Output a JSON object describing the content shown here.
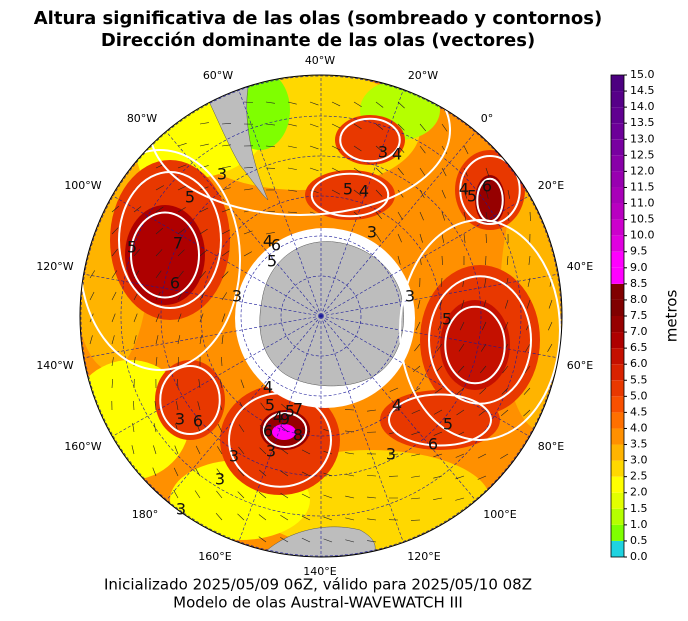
{
  "title": {
    "lines": [
      "Altura significativa de las olas (sombreado y contornos)",
      "Dirección dominante de las olas (vectores)"
    ]
  },
  "map": {
    "longitude_labels": [
      "40°W",
      "20°W",
      "0°",
      "20°E",
      "40°E",
      "60°E",
      "80°E",
      "100°E",
      "120°E",
      "140°E",
      "160°E",
      "180°",
      "160°W",
      "140°W",
      "120°W",
      "100°W",
      "80°W",
      "60°W"
    ],
    "contour_labels": [
      3,
      4,
      5,
      4,
      3,
      4,
      5,
      6,
      5,
      7,
      6,
      5,
      3,
      3,
      4,
      5,
      6,
      3,
      4,
      5,
      6,
      3,
      4,
      5,
      6,
      7,
      8,
      9,
      5,
      4,
      3,
      6,
      5,
      3,
      3,
      3,
      3
    ]
  },
  "colorbar": {
    "label": "metros",
    "ticks": [
      {
        "value": 0,
        "label": "0.0"
      },
      {
        "value": 0.5,
        "label": "0.5"
      },
      {
        "value": 1,
        "label": "1.0"
      },
      {
        "value": 1.5,
        "label": "1.5"
      },
      {
        "value": 2,
        "label": "2.0"
      },
      {
        "value": 2.5,
        "label": "2.5"
      },
      {
        "value": 3,
        "label": "3.0"
      },
      {
        "value": 3.5,
        "label": "3.5"
      },
      {
        "value": 4,
        "label": "4.0"
      },
      {
        "value": 4.5,
        "label": "4.5"
      },
      {
        "value": 5,
        "label": "5.0"
      },
      {
        "value": 5.5,
        "label": "5.5"
      },
      {
        "value": 6,
        "label": "6.0"
      },
      {
        "value": 6.5,
        "label": "6.5"
      },
      {
        "value": 7,
        "label": "7.0"
      },
      {
        "value": 7.5,
        "label": "7.5"
      },
      {
        "value": 8,
        "label": "8.0"
      },
      {
        "value": 8.5,
        "label": "8.5"
      },
      {
        "value": 9,
        "label": "9.0"
      },
      {
        "value": 9.5,
        "label": "9.5"
      },
      {
        "value": 10,
        "label": "10.0"
      },
      {
        "value": 10.5,
        "label": "10.5"
      },
      {
        "value": 11,
        "label": "11.0"
      },
      {
        "value": 11.5,
        "label": "11.5"
      },
      {
        "value": 12,
        "label": "12.0"
      },
      {
        "value": 12.5,
        "label": "12.5"
      },
      {
        "value": 13,
        "label": "13.0"
      },
      {
        "value": 13.5,
        "label": "13.5"
      },
      {
        "value": 14,
        "label": "14.0"
      },
      {
        "value": 14.5,
        "label": "14.5"
      },
      {
        "value": 15,
        "label": "15.0"
      }
    ],
    "colors": [
      "#1fd3e0",
      "#7fff00",
      "#b5ff00",
      "#e2ff00",
      "#ffff00",
      "#ffd800",
      "#ffb400",
      "#ff9000",
      "#ff7000",
      "#f85000",
      "#e83800",
      "#d82200",
      "#c41000",
      "#ae0000",
      "#960000",
      "#800000",
      "#800000",
      "#ff00ff",
      "#ff00ff",
      "#e000e0",
      "#cc00cc",
      "#b800c0",
      "#a800b8",
      "#9800b0",
      "#8800a8",
      "#7800a0",
      "#6c0098",
      "#600090",
      "#560088",
      "#4c0080"
    ]
  },
  "footer": {
    "lines": [
      "Inicializado 2025/05/09 06Z, válido para 2025/05/10 08Z",
      "Modelo de olas Austral-WAVEWATCH III"
    ]
  }
}
